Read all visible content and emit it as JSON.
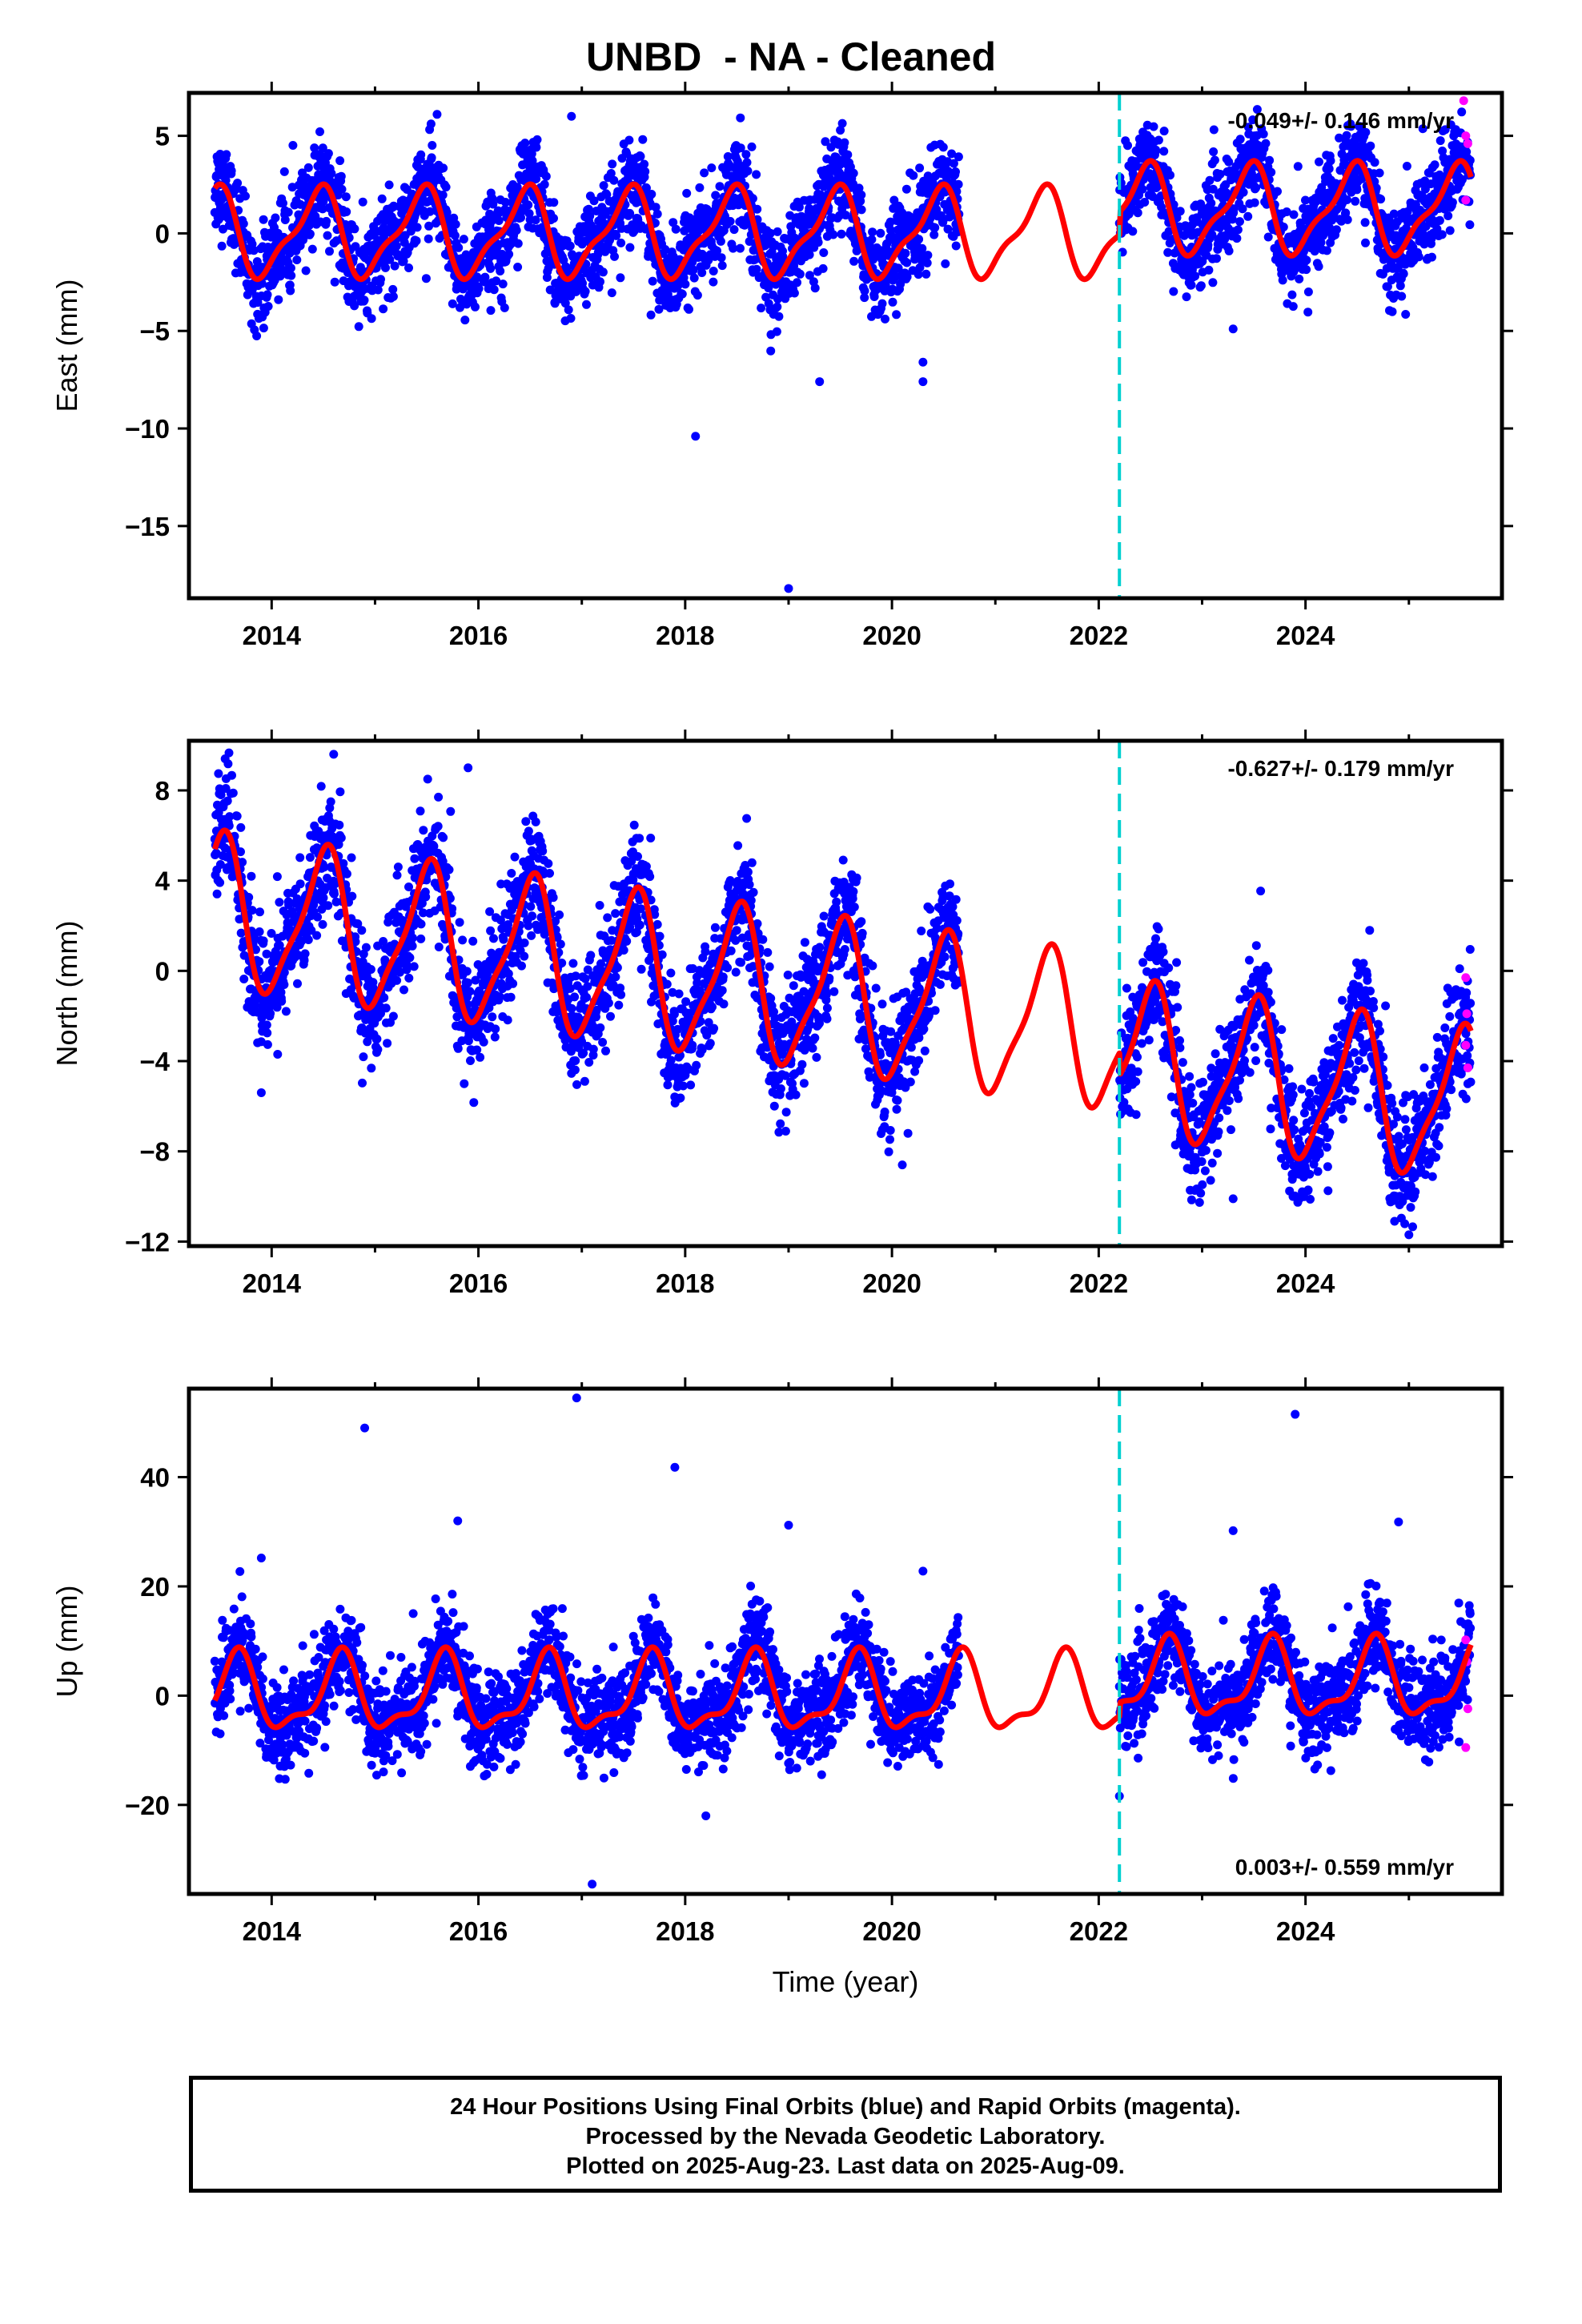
{
  "title": "UNBD  - NA - Cleaned",
  "xlabel": "Time (year)",
  "footer": {
    "line1": "24 Hour Positions Using Final Orbits (blue) and Rapid Orbits (magenta).",
    "line2": "Processed by the Nevada Geodetic Laboratory.",
    "line3": "Plotted on 2025-Aug-23. Last data on 2025-Aug-09."
  },
  "colors": {
    "final_orbits": "#0000ff",
    "rapid_orbits": "#ff00ff",
    "model": "#ff0000",
    "equipment_change": "#00d0d0"
  },
  "chart_data": [
    {
      "type": "scatter",
      "component": "east",
      "ylabel": "East (mm)",
      "rate_text": "-0.049+/- 0.146 mm/yr",
      "rate_position": "top-right",
      "xlim": [
        2013.2,
        2025.9
      ],
      "ylim": [
        -18.7,
        7.2
      ],
      "xticks": [
        2014,
        2016,
        2018,
        2020,
        2022,
        2024
      ],
      "yticks": [
        -15,
        -10,
        -5,
        0,
        5
      ],
      "ytick_labels": [
        "−15",
        "−10",
        "−5",
        "0",
        "5"
      ],
      "equipment_change_x": 2022.2,
      "data_span": [
        2013.45,
        2025.6
      ],
      "gap": [
        2020.65,
        2022.2
      ],
      "model": {
        "trend": 0.0,
        "annual_amp": 2.1,
        "annual_phase": 0.44,
        "semi_amp": 0.7,
        "semi_phase": 0.05,
        "offset_after_change": 1.2
      },
      "scatter_sd": 1.2,
      "series": [
        {
          "name": "Final Orbits (blue)",
          "marker": "dot"
        },
        {
          "name": "Rapid Orbits (magenta)",
          "marker": "dot",
          "x_range": [
            2025.45,
            2025.6
          ]
        },
        {
          "name": "model",
          "marker": "line"
        }
      ],
      "outliers": [
        [
          2018.1,
          -10.4
        ],
        [
          2019.0,
          -18.2
        ],
        [
          2019.3,
          -7.6
        ],
        [
          2020.3,
          -7.6
        ],
        [
          2020.3,
          -6.6
        ],
        [
          2016.9,
          6.0
        ],
        [
          2015.6,
          6.1
        ],
        [
          2022.5,
          4.3
        ],
        [
          2023.3,
          -4.9
        ]
      ],
      "rapid_points": [
        [
          2025.53,
          6.8
        ],
        [
          2025.55,
          5.0
        ],
        [
          2025.57,
          4.6
        ],
        [
          2025.55,
          1.7
        ]
      ]
    },
    {
      "type": "scatter",
      "component": "north",
      "ylabel": "North (mm)",
      "rate_text": "-0.627+/- 0.179 mm/yr",
      "rate_position": "top-right",
      "xlim": [
        2013.2,
        2025.9
      ],
      "ylim": [
        -12.2,
        10.2
      ],
      "xticks": [
        2014,
        2016,
        2018,
        2020,
        2022,
        2024
      ],
      "yticks": [
        -12,
        -8,
        -4,
        0,
        4,
        8
      ],
      "ytick_labels": [
        "−12",
        "−8",
        "−4",
        "0",
        "4",
        "8"
      ],
      "equipment_change_x": 2022.2,
      "data_span": [
        2013.45,
        2025.6
      ],
      "gap": [
        2020.65,
        2022.2
      ],
      "model": {
        "trend": -0.63,
        "start": 2.6,
        "annual_amp": 3.2,
        "annual_phase": 0.5,
        "semi_amp": 0.8,
        "semi_phase": 0.1,
        "offset_after_change": -1.0
      },
      "scatter_sd": 1.3,
      "series": [
        {
          "name": "Final Orbits (blue)",
          "marker": "dot"
        },
        {
          "name": "Rapid Orbits (magenta)",
          "marker": "dot",
          "x_range": [
            2025.45,
            2025.6
          ]
        },
        {
          "name": "model",
          "marker": "line"
        }
      ],
      "outliers": [
        [
          2014.6,
          9.6
        ],
        [
          2013.55,
          9.4
        ],
        [
          2015.9,
          9.0
        ],
        [
          2013.9,
          -5.4
        ],
        [
          2020.1,
          -8.6
        ],
        [
          2023.3,
          -10.1
        ],
        [
          2025.0,
          -11.7
        ],
        [
          2024.1,
          -8.3
        ]
      ],
      "rapid_points": [
        [
          2025.55,
          -0.3
        ],
        [
          2025.56,
          -1.9
        ],
        [
          2025.57,
          -4.3
        ],
        [
          2025.55,
          -3.3
        ]
      ]
    },
    {
      "type": "scatter",
      "component": "up",
      "ylabel": "Up (mm)",
      "rate_text": "0.003+/- 0.559 mm/yr",
      "rate_position": "bottom-right",
      "xlim": [
        2013.2,
        2025.9
      ],
      "ylim": [
        -36.3,
        56.2
      ],
      "xticks": [
        2014,
        2016,
        2018,
        2020,
        2022,
        2024
      ],
      "yticks": [
        -20,
        0,
        20,
        40
      ],
      "ytick_labels": [
        "−20",
        "0",
        "20",
        "40"
      ],
      "equipment_change_x": 2022.2,
      "data_span": [
        2013.45,
        2025.6
      ],
      "gap": [
        2020.65,
        2022.2
      ],
      "model": {
        "trend": 0.0,
        "annual_amp": 6.5,
        "annual_phase": 0.66,
        "semi_amp": 2.5,
        "semi_phase": 0.2,
        "offset_after_change": 2.5
      },
      "scatter_sd": 4.2,
      "series": [
        {
          "name": "Final Orbits (blue)",
          "marker": "dot"
        },
        {
          "name": "Rapid Orbits (magenta)",
          "marker": "dot",
          "x_range": [
            2025.45,
            2025.6
          ]
        },
        {
          "name": "model",
          "marker": "line"
        }
      ],
      "outliers": [
        [
          2014.9,
          49.0
        ],
        [
          2016.95,
          54.5
        ],
        [
          2017.9,
          41.8
        ],
        [
          2023.9,
          51.5
        ],
        [
          2015.8,
          32.0
        ],
        [
          2019.0,
          31.2
        ],
        [
          2024.9,
          31.8
        ],
        [
          2023.3,
          30.2
        ],
        [
          2020.3,
          22.8
        ],
        [
          2013.9,
          25.2
        ],
        [
          2017.1,
          -34.5
        ],
        [
          2018.2,
          -22.0
        ],
        [
          2022.2,
          -18.4
        ]
      ],
      "rapid_points": [
        [
          2025.55,
          10.2
        ],
        [
          2025.56,
          6.2
        ],
        [
          2025.57,
          -2.4
        ],
        [
          2025.55,
          -9.5
        ]
      ]
    }
  ]
}
